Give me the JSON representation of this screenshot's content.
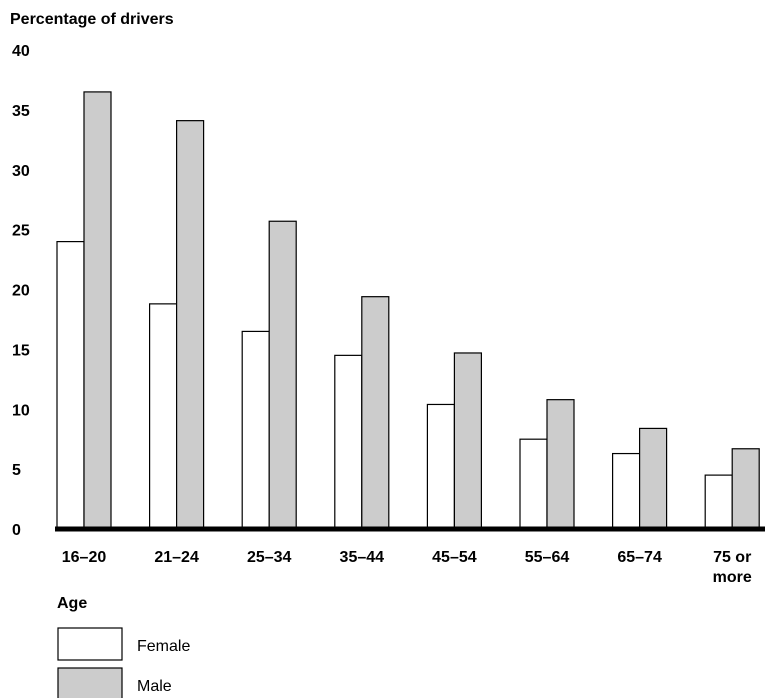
{
  "chart_data": {
    "type": "bar",
    "ylabel": "Percentage of drivers",
    "xlabel": "Age",
    "categories": [
      "16–20",
      "21–24",
      "25–34",
      "35–44",
      "45–54",
      "55–64",
      "65–74",
      "75 or more"
    ],
    "series": [
      {
        "name": "Female",
        "values": [
          24,
          18.8,
          16.5,
          14.5,
          10.4,
          7.5,
          6.3,
          4.5
        ],
        "color": "#ffffff"
      },
      {
        "name": "Male",
        "values": [
          36.5,
          34.1,
          25.7,
          19.4,
          14.7,
          10.8,
          8.4,
          6.7
        ],
        "color": "#cccccc"
      }
    ],
    "yticks": [
      0,
      5,
      10,
      15,
      20,
      25,
      30,
      35,
      40
    ],
    "ylim": [
      0,
      40
    ],
    "grid": false,
    "legend_position": "bottom-left"
  }
}
